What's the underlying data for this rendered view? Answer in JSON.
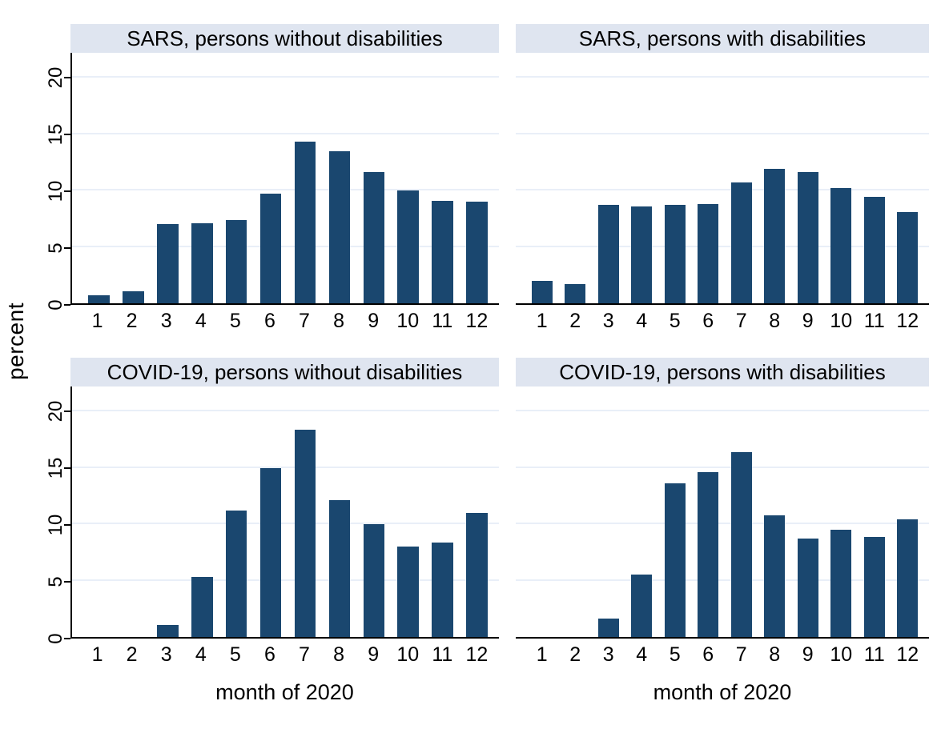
{
  "figure": {
    "ylabel": "percent",
    "xlabel": "month of 2020"
  },
  "colors": {
    "bar": "#1a476f",
    "title_band_bg": "#dfe5f0",
    "gridline": "#e9eff8",
    "axis": "#000000"
  },
  "chart_data": [
    {
      "type": "bar",
      "title": "SARS, persons without disabilities",
      "categories": [
        "1",
        "2",
        "3",
        "4",
        "5",
        "6",
        "7",
        "8",
        "9",
        "10",
        "11",
        "12"
      ],
      "values": [
        0.7,
        1.1,
        7.0,
        7.1,
        7.4,
        9.7,
        14.3,
        13.5,
        11.6,
        10.0,
        9.1,
        9.0
      ],
      "xlabel": "",
      "ylabel": "percent",
      "yticks": [
        0,
        5,
        10,
        15,
        20
      ],
      "ylim": [
        0,
        22.2
      ],
      "grid": true,
      "show_y_axis": true,
      "legend": "none"
    },
    {
      "type": "bar",
      "title": "SARS, persons with disabilities",
      "categories": [
        "1",
        "2",
        "3",
        "4",
        "5",
        "6",
        "7",
        "8",
        "9",
        "10",
        "11",
        "12"
      ],
      "values": [
        2.0,
        1.7,
        8.7,
        8.6,
        8.7,
        8.8,
        10.7,
        11.9,
        11.6,
        10.2,
        9.4,
        8.1
      ],
      "xlabel": "",
      "ylabel": "percent",
      "yticks": [
        0,
        5,
        10,
        15,
        20
      ],
      "ylim": [
        0,
        22.2
      ],
      "grid": true,
      "show_y_axis": false,
      "legend": "none"
    },
    {
      "type": "bar",
      "title": "COVID-19, persons without disabilities",
      "categories": [
        "1",
        "2",
        "3",
        "4",
        "5",
        "6",
        "7",
        "8",
        "9",
        "10",
        "11",
        "12"
      ],
      "values": [
        0,
        0,
        1.1,
        5.3,
        11.2,
        15.0,
        18.4,
        12.1,
        10.0,
        8.0,
        8.4,
        11.0
      ],
      "xlabel": "month of 2020",
      "ylabel": "percent",
      "yticks": [
        0,
        5,
        10,
        15,
        20
      ],
      "ylim": [
        0,
        22.2
      ],
      "grid": true,
      "show_y_axis": true,
      "legend": "none"
    },
    {
      "type": "bar",
      "title": "COVID-19, persons with disabilities",
      "categories": [
        "1",
        "2",
        "3",
        "4",
        "5",
        "6",
        "7",
        "8",
        "9",
        "10",
        "11",
        "12"
      ],
      "values": [
        0,
        0,
        1.6,
        5.5,
        13.6,
        14.6,
        16.4,
        10.8,
        8.7,
        9.5,
        8.9,
        10.4
      ],
      "xlabel": "month of 2020",
      "ylabel": "percent",
      "yticks": [
        0,
        5,
        10,
        15,
        20
      ],
      "ylim": [
        0,
        22.2
      ],
      "grid": true,
      "show_y_axis": false,
      "legend": "none"
    }
  ]
}
